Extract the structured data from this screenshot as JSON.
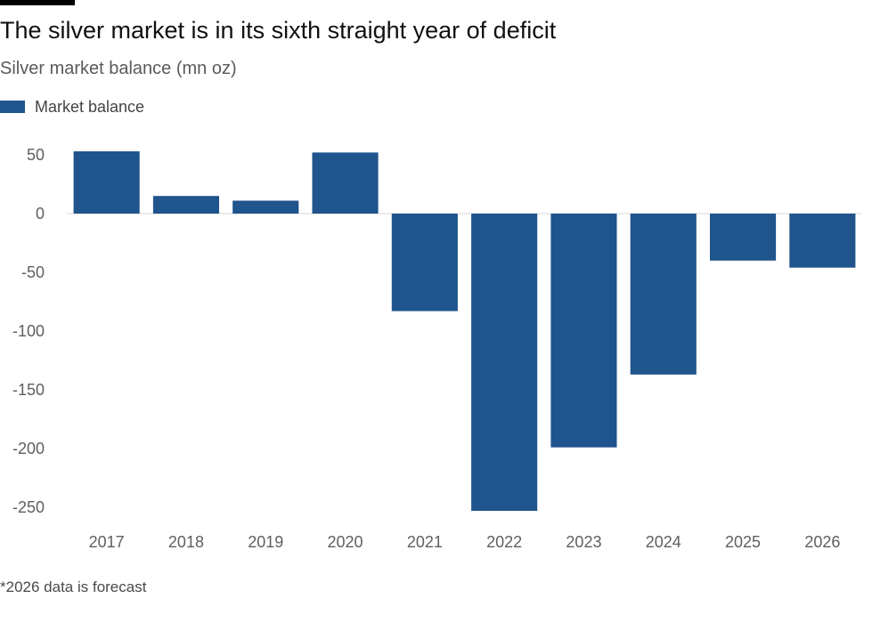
{
  "colors": {
    "bar": "#1f548d",
    "background": "#ffffff",
    "zero_line": "#d9d9d9"
  },
  "chart_data": {
    "type": "bar",
    "title": "The silver market is in its sixth straight year of deficit",
    "subtitle": "Silver market balance (mn oz)",
    "xlabel": "",
    "ylabel": "",
    "categories": [
      "2017",
      "2018",
      "2019",
      "2020",
      "2021",
      "2022",
      "2023",
      "2024",
      "2025",
      "2026"
    ],
    "series": [
      {
        "name": "Market balance",
        "values": [
          53,
          15,
          11,
          52,
          -83,
          -253,
          -199,
          -137,
          -40,
          -46
        ]
      }
    ],
    "ylim": [
      -270,
      60
    ],
    "yticks": [
      50,
      0,
      -50,
      -100,
      -150,
      -200,
      -250
    ],
    "ytick_labels": [
      "50",
      "0",
      "-50",
      "-100",
      "-150",
      "-200",
      "-250"
    ],
    "grid": false,
    "legend_position": "top-left",
    "footnote": "*2026 data is forecast"
  }
}
